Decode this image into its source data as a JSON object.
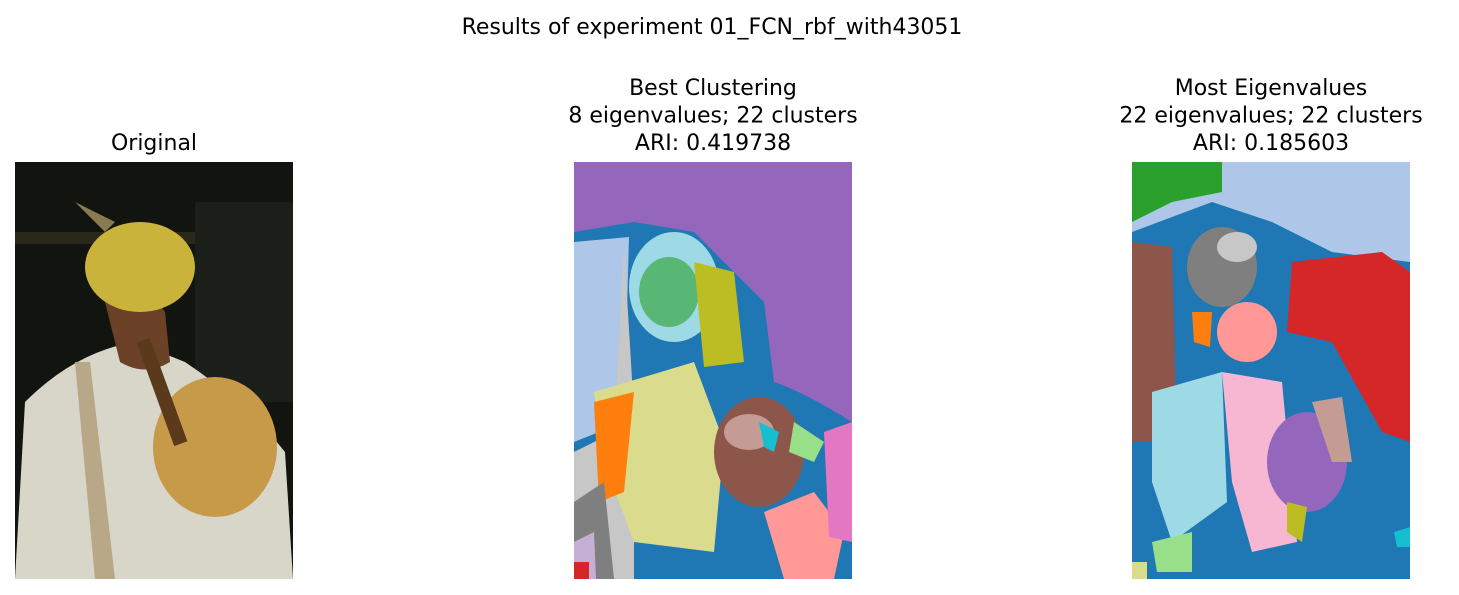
{
  "figure": {
    "title": "Results of experiment 01_FCN_rbf_with43051",
    "panels": [
      {
        "title_lines": [
          "Original"
        ]
      },
      {
        "title_lines": [
          "Best Clustering",
          "8 eigenvalues; 22 clusters",
          "ARI: 0.419738"
        ]
      },
      {
        "title_lines": [
          "Most Eigenvalues",
          "22 eigenvalues; 22 clusters",
          "ARI: 0.185603"
        ]
      }
    ]
  }
}
